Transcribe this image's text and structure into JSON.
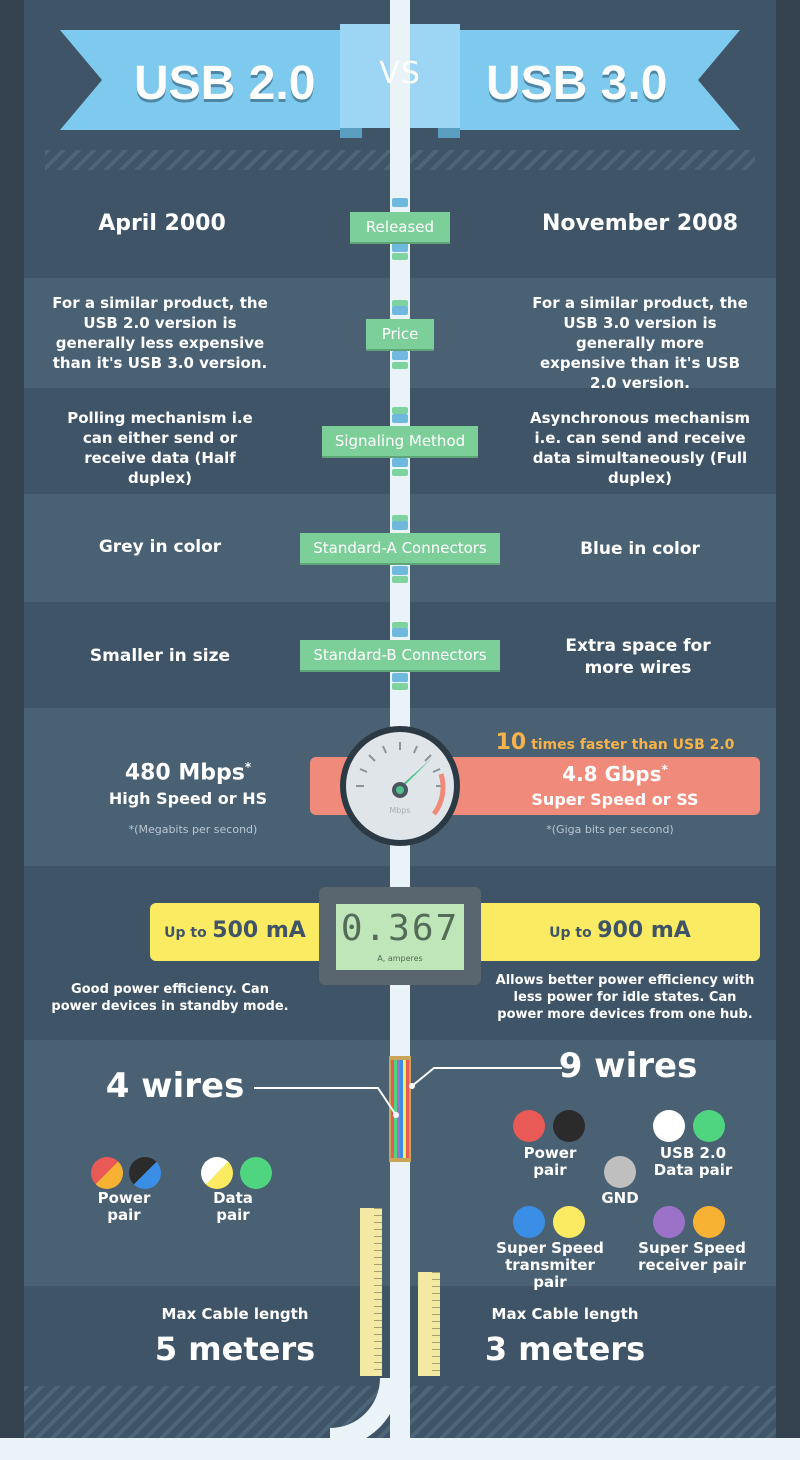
{
  "header": {
    "left_title": "USB 2.0",
    "vs": "VS",
    "right_title": "USB 3.0"
  },
  "rows": {
    "released": {
      "label": "Released",
      "usb2": "April 2000",
      "usb3": "November 2008"
    },
    "price": {
      "label": "Price",
      "usb2": "For a similar product, the USB 2.0 version is generally less expensive than it's USB 3.0 version.",
      "usb3": "For a similar product, the USB 3.0 version is generally more expensive than it's USB 2.0 version."
    },
    "signaling": {
      "label": "Signaling Method",
      "usb2": "Polling mechanism i.e can either send or receive data (Half duplex)",
      "usb3": "Asynchronous mechanism i.e. can send and receive data simultaneously (Full duplex)"
    },
    "std_a": {
      "label": "Standard-A Connectors",
      "usb2": "Grey in color",
      "usb3": "Blue in color"
    },
    "std_b": {
      "label": "Standard-B Connectors",
      "usb2": "Smaller in size",
      "usb3": "Extra space for more wires"
    }
  },
  "speed": {
    "usb2_value": "480 Mbps",
    "usb2_star": "*",
    "usb2_name": "High Speed or HS",
    "usb2_note": "*(Megabits per second)",
    "gauge_unit": "Mbps",
    "faster_num": "10",
    "faster_text": "times faster than USB 2.0",
    "usb3_value": "4.8 Gbps",
    "usb3_star": "*",
    "usb3_name": "Super Speed or SS",
    "usb3_note": "*(Giga bits per second)"
  },
  "power": {
    "up_to": "Up to",
    "usb2_value": "500 mA",
    "usb3_value": "900 mA",
    "meter_reading": "0.367",
    "meter_unit": "A, amperes",
    "usb2_desc": "Good power efficiency. Can power devices in standby mode.",
    "usb3_desc": "Allows better power efficiency with less power for idle states. Can power more devices from one hub."
  },
  "wires": {
    "usb2_count": "4 wires",
    "usb3_count": "9 wires",
    "usb2_pairs": [
      {
        "label": "Power pair",
        "colors": [
          "#e95a57",
          "#f7b233"
        ]
      },
      {
        "label": "Data pair",
        "colors": [
          "#ffffff",
          "#fbeb63"
        ]
      }
    ],
    "usb2_pair2_colors": [
      "#2b2b2b",
      "#3a8ee6"
    ],
    "usb2_data2_color": "#4fd47f",
    "usb3_groups": {
      "power": {
        "label": "Power pair",
        "colors": [
          "#e95a57",
          "#2b2b2b"
        ]
      },
      "data": {
        "label": "USB 2.0 Data pair",
        "colors": [
          "#ffffff",
          "#4fd47f"
        ]
      },
      "gnd": {
        "label": "GND",
        "color": "#bfbfbf"
      },
      "tx": {
        "label": "Super Speed transmiter pair",
        "colors": [
          "#3a8ee6",
          "#fbeb63"
        ]
      },
      "rx": {
        "label": "Super Speed receiver pair",
        "colors": [
          "#9c72c9",
          "#f7b233"
        ]
      }
    }
  },
  "cable": {
    "label": "Max Cable length",
    "usb2_length": "5 meters",
    "usb3_length": "3 meters"
  },
  "colors": {
    "background": "#3f5567",
    "accent_blue": "#7ec9ee",
    "label_green": "#7dcf9a",
    "speed_red": "#f08a7a",
    "power_yellow": "#fbeb63",
    "faster_orange": "#f7b24a"
  }
}
